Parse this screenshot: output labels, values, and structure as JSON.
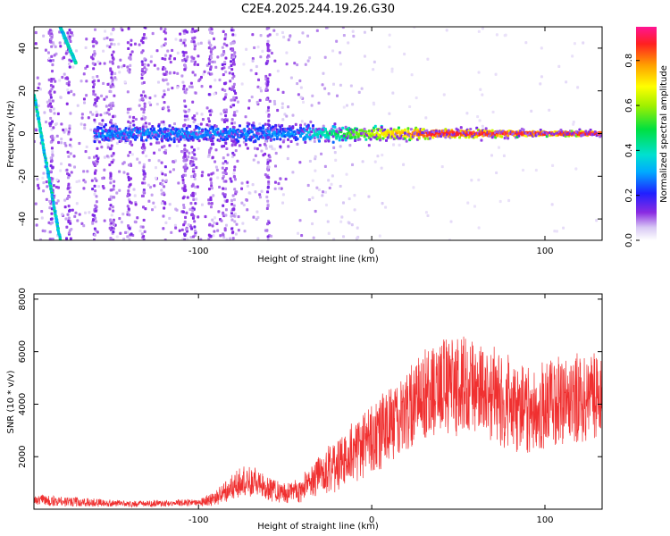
{
  "chart_data": [
    {
      "type": "heatmap",
      "title": "C2E4.2025.244.19.26.G30",
      "xlabel": "Height of straight line (km)",
      "ylabel": "Frequency (Hz)",
      "xlim": [
        -195,
        133
      ],
      "ylim": [
        -50,
        50
      ],
      "x_ticks": [
        -100,
        0,
        100
      ],
      "x_tick_labels": [
        "-100",
        "0",
        "100"
      ],
      "y_ticks": [
        -40,
        -20,
        0,
        20,
        40
      ],
      "y_tick_labels": [
        "-40",
        "-20",
        "0",
        "20",
        "40"
      ],
      "colorbar": {
        "label": "Normalized spectral amplitude",
        "range": [
          0,
          0.95
        ],
        "ticks": [
          0.0,
          0.2,
          0.4,
          0.6,
          0.8
        ],
        "tick_labels": [
          "0.0",
          "0.2",
          "0.4",
          "0.6",
          "0.8"
        ]
      },
      "features": {
        "carrier_line_hz": 0,
        "diagonal_trace": [
          [
            -195,
            18
          ],
          [
            -180,
            -50
          ]
        ],
        "upper_diagonal_trace": [
          [
            -180,
            50
          ],
          [
            -171,
            33
          ]
        ]
      }
    },
    {
      "type": "line",
      "title": "",
      "xlabel": "Height of straight line (km)",
      "ylabel": "SNR (10 * v/v)",
      "xlim": [
        -195,
        133
      ],
      "ylim": [
        0,
        8200
      ],
      "x_ticks": [
        -100,
        0,
        100
      ],
      "x_tick_labels": [
        "-100",
        "0",
        "100"
      ],
      "y_ticks": [
        2000,
        4000,
        6000,
        8000
      ],
      "y_tick_labels": [
        "2000",
        "4000",
        "6000",
        "8000"
      ],
      "series": [
        {
          "name": "SNR",
          "color": "#f03030",
          "x": [
            -195,
            -180,
            -160,
            -140,
            -120,
            -100,
            -90,
            -80,
            -70,
            -60,
            -50,
            -40,
            -30,
            -20,
            -10,
            0,
            10,
            20,
            30,
            40,
            50,
            60,
            70,
            80,
            90,
            100,
            110,
            120,
            133
          ],
          "mean": [
            350,
            300,
            250,
            200,
            220,
            280,
            400,
            900,
            1100,
            800,
            600,
            800,
            1300,
            1700,
            2200,
            2600,
            3200,
            3800,
            4400,
            4700,
            4800,
            4600,
            4300,
            4000,
            3800,
            3900,
            4100,
            4200,
            4300
          ],
          "spread": [
            300,
            250,
            200,
            150,
            150,
            200,
            350,
            700,
            800,
            600,
            500,
            700,
            1000,
            1200,
            1500,
            1700,
            1800,
            2000,
            2200,
            2300,
            2400,
            2400,
            2300,
            2300,
            2200,
            2200,
            2200,
            2200,
            2200
          ]
        }
      ]
    }
  ],
  "colors": {
    "line": "#f03030",
    "background": "#ffffff",
    "axis": "#000000"
  }
}
